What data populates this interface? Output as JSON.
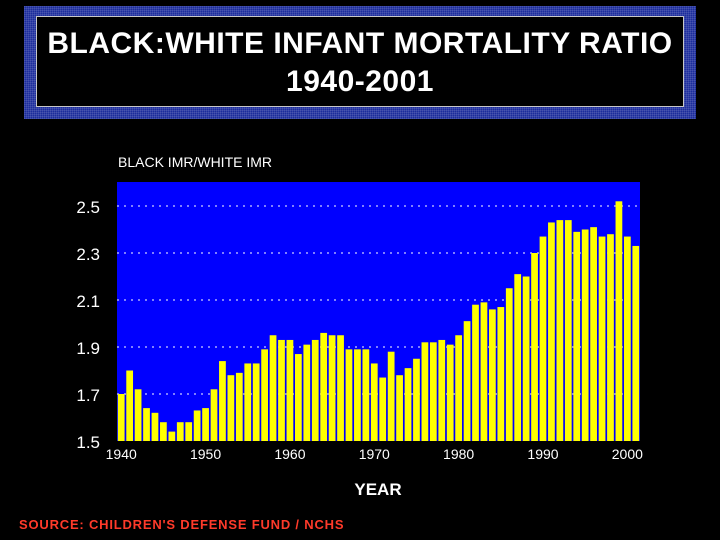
{
  "title": {
    "line1": "BLACK:WHITE INFANT MORTALITY RATIO",
    "line2": "1940-2001"
  },
  "source": "SOURCE: CHILDREN'S DEFENSE FUND / NCHS",
  "colors": {
    "plot_background": "#0000ff",
    "bar": "#ffff00",
    "title_frame": "#1c2c9c",
    "source_text": "#ff3a2a",
    "text": "#ffffff"
  },
  "chart_data": {
    "type": "bar",
    "title": "",
    "xlabel": "YEAR",
    "ylabel": "BLACK IMR/WHITE IMR",
    "ylim": [
      1.5,
      2.6
    ],
    "yticks": [
      "1.5",
      "1.7",
      "1.9",
      "2.1",
      "2.3",
      "2.5"
    ],
    "xticks": [
      "1940",
      "1950",
      "1960",
      "1970",
      "1980",
      "1990",
      "2000"
    ],
    "grid": "horizontal dotted",
    "categories": [
      "1940",
      "1941",
      "1942",
      "1943",
      "1944",
      "1945",
      "1946",
      "1947",
      "1948",
      "1949",
      "1950",
      "1951",
      "1952",
      "1953",
      "1954",
      "1955",
      "1956",
      "1957",
      "1958",
      "1959",
      "1960",
      "1961",
      "1962",
      "1963",
      "1964",
      "1965",
      "1966",
      "1967",
      "1968",
      "1969",
      "1970",
      "1971",
      "1972",
      "1973",
      "1974",
      "1975",
      "1976",
      "1977",
      "1978",
      "1979",
      "1980",
      "1981",
      "1982",
      "1983",
      "1984",
      "1985",
      "1986",
      "1987",
      "1988",
      "1989",
      "1990",
      "1991",
      "1992",
      "1993",
      "1994",
      "1995",
      "1996",
      "1997",
      "1998",
      "1999",
      "2000",
      "2001"
    ],
    "values": [
      1.7,
      1.8,
      1.72,
      1.64,
      1.62,
      1.58,
      1.54,
      1.58,
      1.58,
      1.63,
      1.64,
      1.72,
      1.84,
      1.78,
      1.79,
      1.83,
      1.83,
      1.89,
      1.95,
      1.93,
      1.93,
      1.87,
      1.91,
      1.93,
      1.96,
      1.95,
      1.95,
      1.89,
      1.89,
      1.89,
      1.83,
      1.77,
      1.88,
      1.78,
      1.81,
      1.85,
      1.92,
      1.92,
      1.93,
      1.91,
      1.95,
      2.01,
      2.08,
      2.09,
      2.06,
      2.07,
      2.15,
      2.21,
      2.2,
      2.3,
      2.37,
      2.43,
      2.44,
      2.44,
      2.39,
      2.4,
      2.41,
      2.37,
      2.38,
      2.52,
      2.37,
      2.33
    ]
  }
}
